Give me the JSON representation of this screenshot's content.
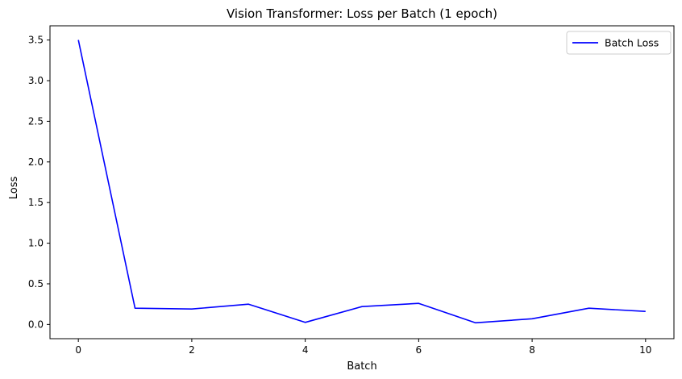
{
  "chart_data": {
    "type": "line",
    "title": "Vision Transformer: Loss per Batch (1 epoch)",
    "xlabel": "Batch",
    "ylabel": "Loss",
    "xlim": [
      -0.5,
      10.5
    ],
    "ylim": [
      -0.175,
      3.675
    ],
    "xticks": [
      0,
      2,
      4,
      6,
      8,
      10
    ],
    "xtick_labels": [
      "0",
      "2",
      "4",
      "6",
      "8",
      "10"
    ],
    "yticks": [
      0.0,
      0.5,
      1.0,
      1.5,
      2.0,
      2.5,
      3.0,
      3.5
    ],
    "ytick_labels": [
      "0.0",
      "0.5",
      "1.0",
      "1.5",
      "2.0",
      "2.5",
      "3.0",
      "3.5"
    ],
    "grid": false,
    "legend_position": "top-right",
    "x": [
      0,
      1,
      2,
      3,
      4,
      5,
      6,
      7,
      8,
      9,
      10
    ],
    "series": [
      {
        "name": "Batch Loss",
        "color": "#0000ff",
        "values": [
          3.5,
          0.2,
          0.19,
          0.25,
          0.025,
          0.22,
          0.26,
          0.02,
          0.07,
          0.2,
          0.16
        ]
      }
    ]
  }
}
